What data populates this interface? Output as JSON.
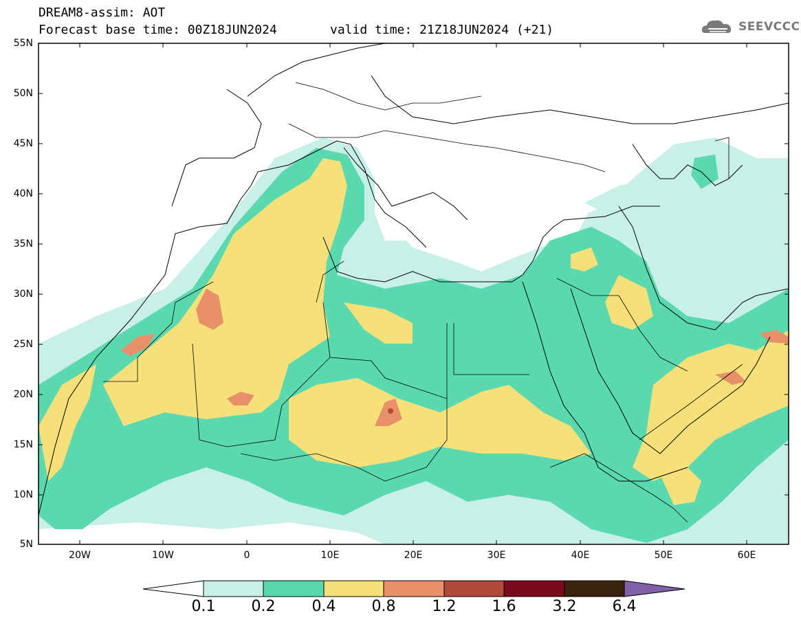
{
  "header": {
    "title": "DREAM8-assim: AOT",
    "base_time": "Forecast base time: 00Z18JUN2024",
    "valid_time": "valid time: 21Z18JUN2024 (+21)"
  },
  "logo": {
    "text": "SEEVCCC",
    "icon": "cloud-icon"
  },
  "map": {
    "lat_range": [
      5,
      55
    ],
    "lon_range": [
      -25,
      65
    ],
    "lat_labels": [
      "55N",
      "50N",
      "45N",
      "40N",
      "35N",
      "30N",
      "25N",
      "20N",
      "15N",
      "10N",
      "5N"
    ],
    "lon_labels": [
      "20W",
      "10W",
      "0",
      "10E",
      "20E",
      "30E",
      "40E",
      "50E",
      "60E"
    ]
  },
  "colorbar": {
    "colors": [
      "#ffffff",
      "#c8f0e8",
      "#5ad8b0",
      "#f5e07a",
      "#e8906a",
      "#b24a3a",
      "#7a0a1e",
      "#3a2410",
      "#8060a8"
    ],
    "labels": [
      "0.1",
      "0.2",
      "0.4",
      "0.8",
      "1.2",
      "1.6",
      "3.2",
      "6.4"
    ]
  }
}
